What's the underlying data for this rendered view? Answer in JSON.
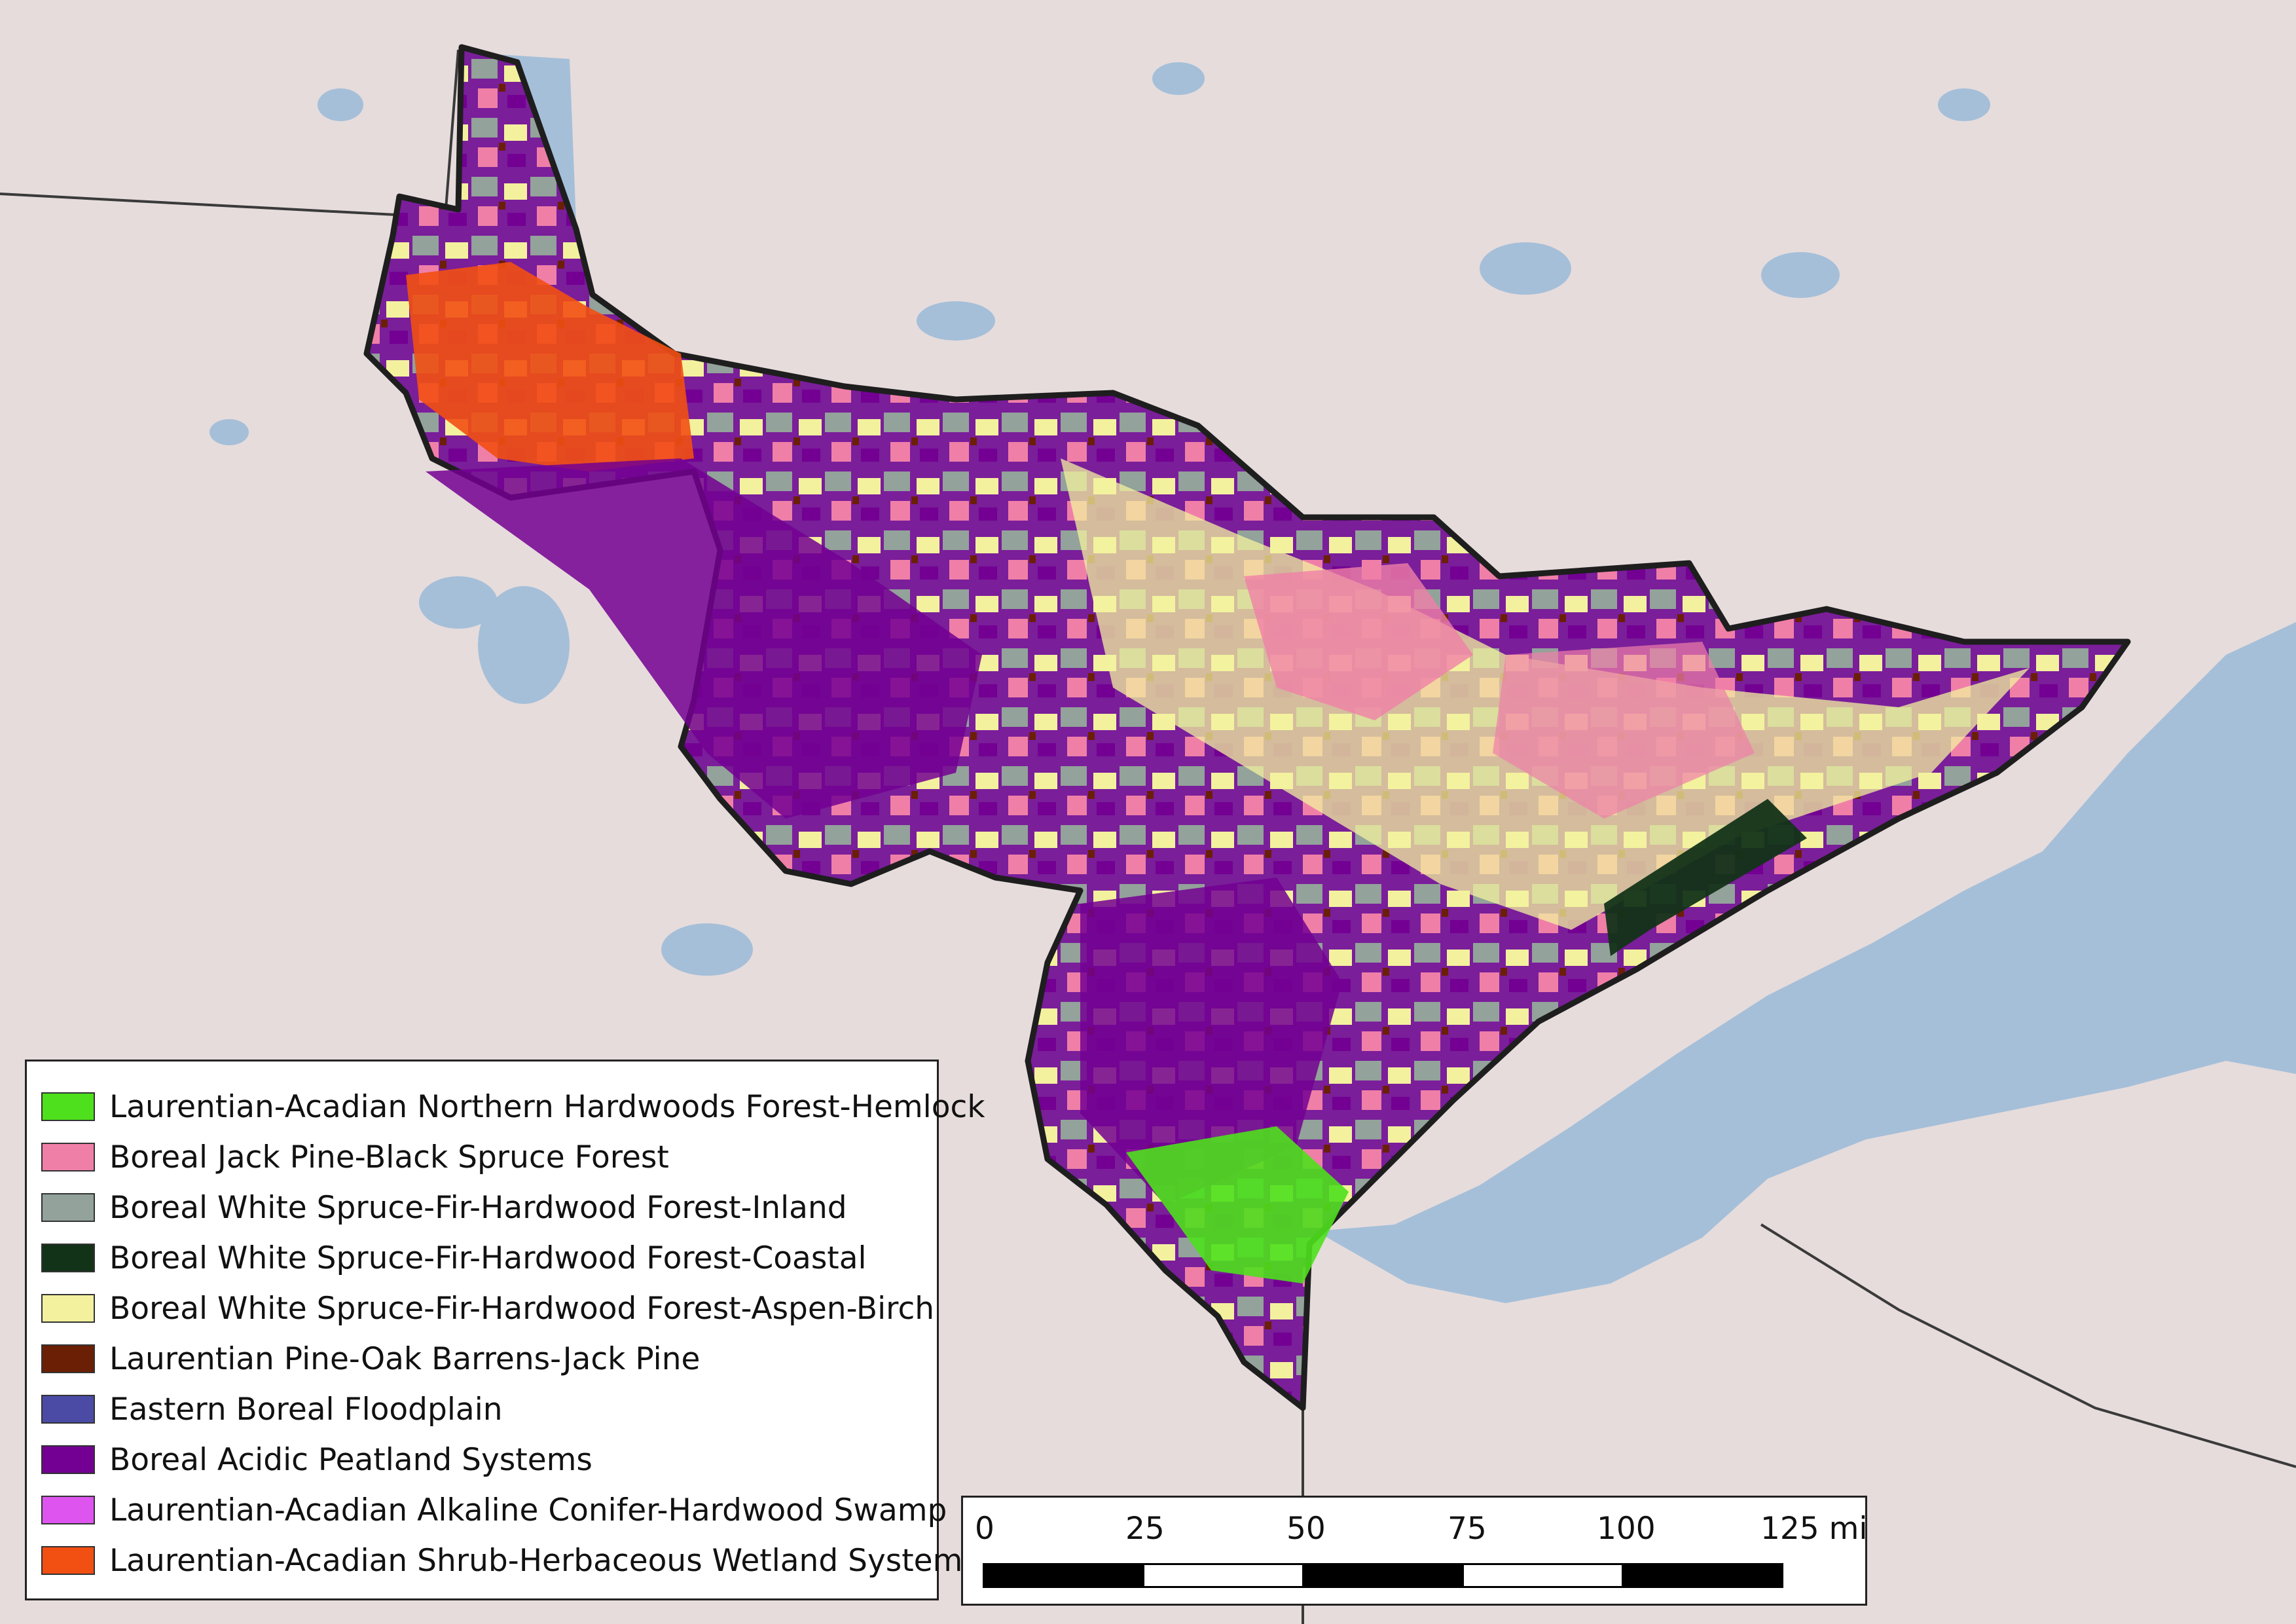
{
  "map": {
    "colors": {
      "background_land": "#e6dcdb",
      "water": "#a5bfd9",
      "boundary": "#1e1e1e",
      "border_line": "#3a3a3a"
    }
  },
  "legend": {
    "items": [
      {
        "label": "Laurentian-Acadian Northern Hardwoods Forest-Hemlock",
        "color": "#4ee01c"
      },
      {
        "label": "Boreal Jack Pine-Black Spruce Forest",
        "color": "#f07fa8"
      },
      {
        "label": "Boreal White Spruce-Fir-Hardwood Forest-Inland",
        "color": "#93a29a"
      },
      {
        "label": "Boreal White Spruce-Fir-Hardwood Forest-Coastal",
        "color": "#133318"
      },
      {
        "label": "Boreal White Spruce-Fir-Hardwood Forest-Aspen-Birch",
        "color": "#f3f19e"
      },
      {
        "label": "Laurentian Pine-Oak Barrens-Jack Pine",
        "color": "#6b1f04"
      },
      {
        "label": "Eastern Boreal Floodplain",
        "color": "#4b4ba6"
      },
      {
        "label": "Boreal Acidic Peatland Systems",
        "color": "#730092"
      },
      {
        "label": "Laurentian-Acadian Alkaline Conifer-Hardwood Swamp",
        "color": "#dd55ee"
      },
      {
        "label": "Laurentian-Acadian Shrub-Herbaceous Wetland Systems",
        "color": "#f24f12"
      }
    ]
  },
  "scale_bar": {
    "ticks": [
      "0",
      "25",
      "50",
      "75",
      "100",
      "125 mi"
    ]
  }
}
